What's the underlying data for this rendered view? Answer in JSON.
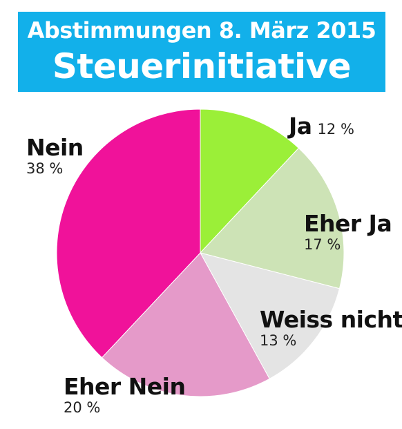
{
  "title": {
    "line1": "Abstimmungen 8. März 2015",
    "line2": "Steuerinitiative"
  },
  "colors": {
    "banner": "#12b0ea",
    "banner_text": "#ffffff"
  },
  "chart_data": {
    "type": "pie",
    "title": "Abstimmungen 8. März 2015 — Steuerinitiative",
    "start": "12 o'clock",
    "direction": "clockwise",
    "slices": [
      {
        "label": "Ja",
        "value": 12,
        "value_label": "12 %",
        "color": "#9bef38"
      },
      {
        "label": "Eher Ja",
        "value": 17,
        "value_label": "17 %",
        "color": "#cde3b6"
      },
      {
        "label": "Weiss nicht",
        "value": 13,
        "value_label": "13 %",
        "color": "#e4e4e4"
      },
      {
        "label": "Eher Nein",
        "value": 20,
        "value_label": "20 %",
        "color": "#e59ac9"
      },
      {
        "label": "Nein",
        "value": 38,
        "value_label": "38 %",
        "color": "#f0129a"
      }
    ]
  }
}
